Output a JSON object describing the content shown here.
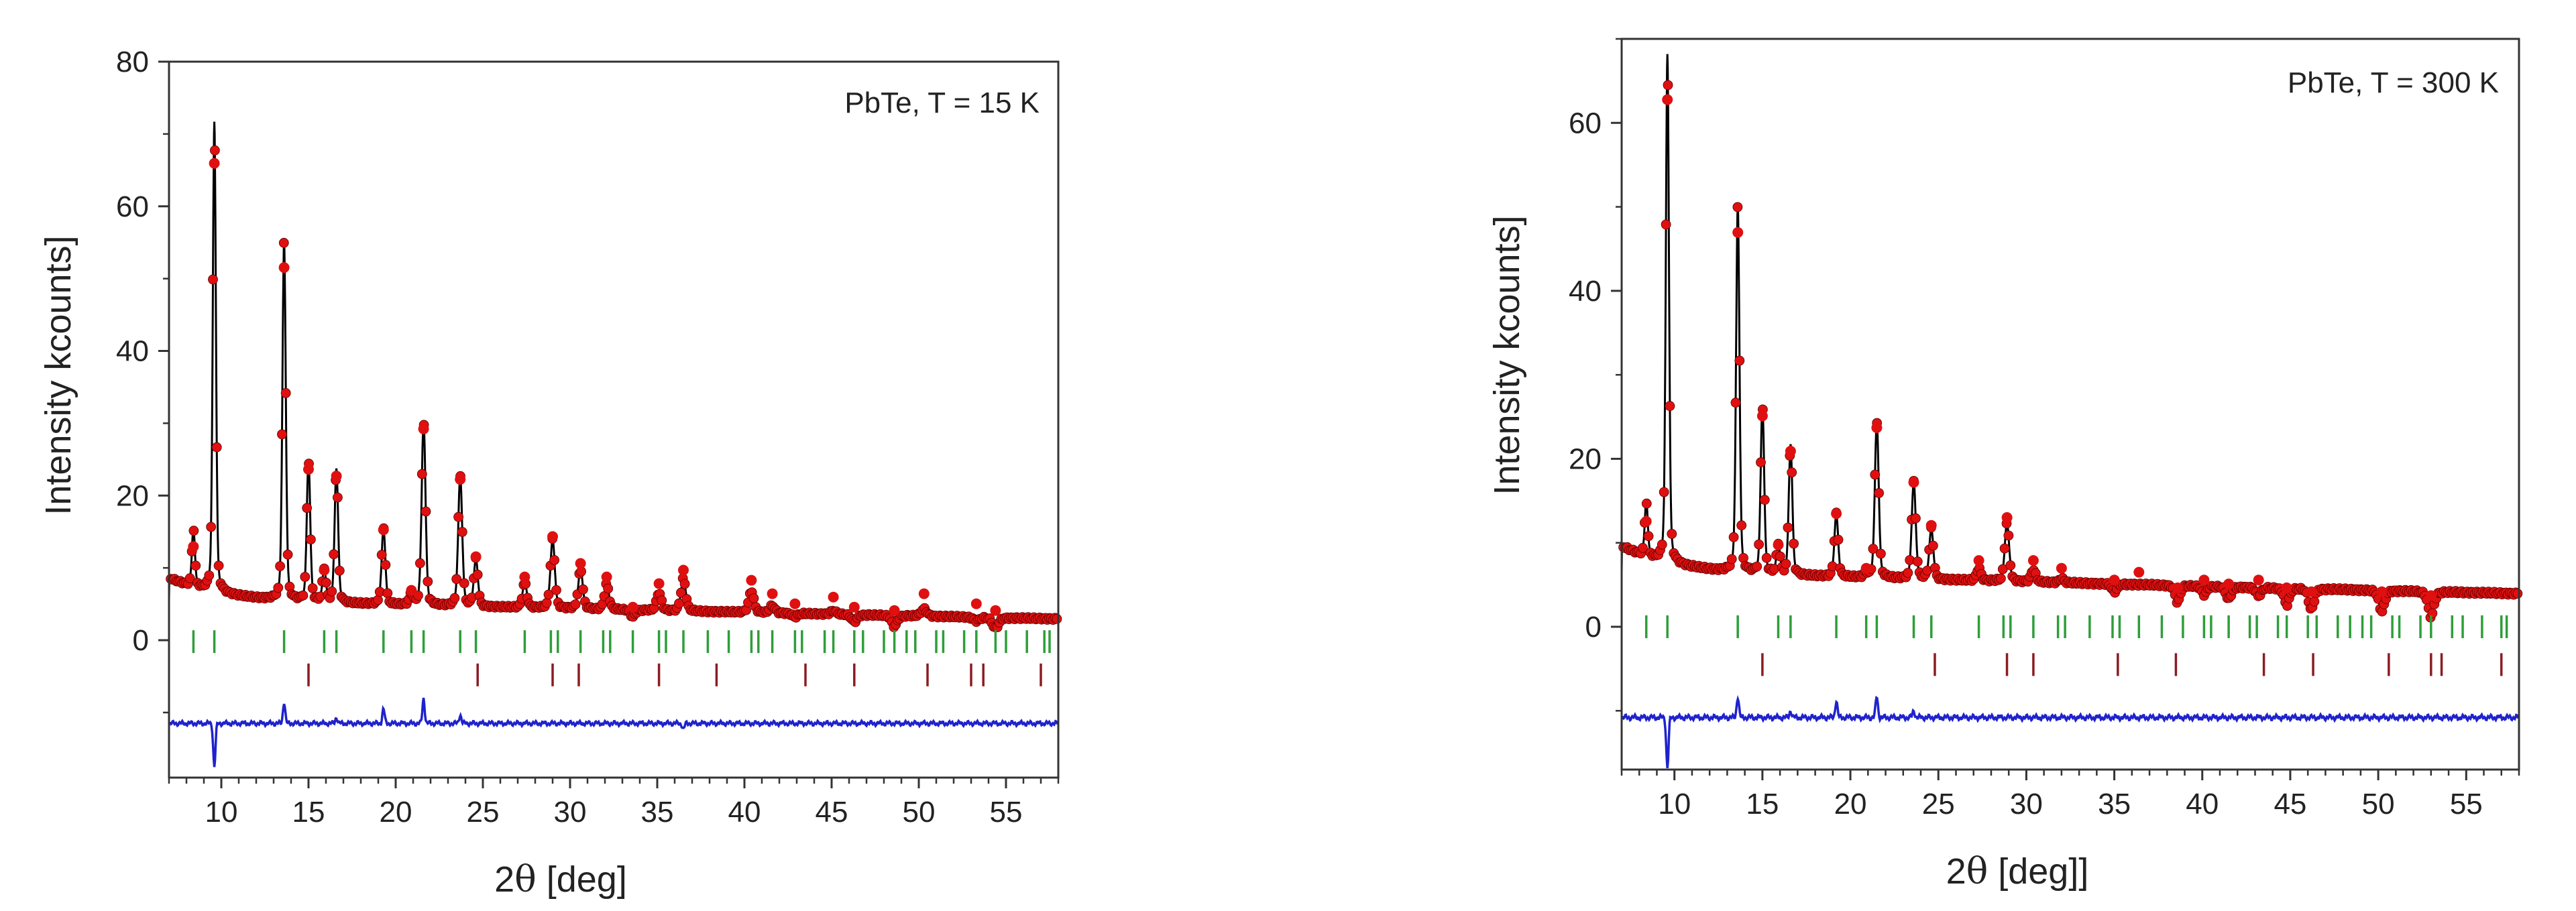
{
  "colors": {
    "observed": "#e01010",
    "calculated": "#000000",
    "difference": "#1f22cc",
    "reflections_phase1": "#2e9e3a",
    "reflections_phase2": "#8b1c22",
    "axis": "#333333"
  },
  "chart_data": [
    {
      "type": "line",
      "subtype": "rietveld-refinement",
      "annotation": "PbTe, T = 15 K",
      "xlabel_prefix": "2",
      "xlabel_theta": "θ",
      "xlabel_suffix": " [deg]",
      "ylabel": "Intensity kcounts]",
      "xlim": [
        7,
        58
      ],
      "ylim": [
        -19,
        80
      ],
      "x_ticks": [
        10,
        15,
        20,
        25,
        30,
        35,
        40,
        45,
        50,
        55
      ],
      "y_ticks": [
        0,
        20,
        40,
        60,
        80
      ],
      "background": 5.5,
      "difference_offset": -11.5,
      "peaks": [
        {
          "x": 8.4,
          "y": 13.5
        },
        {
          "x": 9.6,
          "y": 70.5
        },
        {
          "x": 13.6,
          "y": 55
        },
        {
          "x": 15.0,
          "y": 25
        },
        {
          "x": 15.9,
          "y": 10
        },
        {
          "x": 16.6,
          "y": 24
        },
        {
          "x": 19.3,
          "y": 16
        },
        {
          "x": 20.9,
          "y": 7
        },
        {
          "x": 21.6,
          "y": 31
        },
        {
          "x": 23.7,
          "y": 23.5
        },
        {
          "x": 24.6,
          "y": 12
        },
        {
          "x": 27.4,
          "y": 9
        },
        {
          "x": 29.0,
          "y": 15
        },
        {
          "x": 30.6,
          "y": 11
        },
        {
          "x": 32.1,
          "y": 9
        },
        {
          "x": 33.6,
          "y": 4.5
        },
        {
          "x": 35.1,
          "y": 8
        },
        {
          "x": 36.5,
          "y": 10
        },
        {
          "x": 40.4,
          "y": 8.5
        },
        {
          "x": 41.6,
          "y": 6.5
        },
        {
          "x": 42.9,
          "y": 5
        },
        {
          "x": 45.1,
          "y": 6
        },
        {
          "x": 46.3,
          "y": 4.5
        },
        {
          "x": 48.6,
          "y": 4
        },
        {
          "x": 50.3,
          "y": 6.5
        },
        {
          "x": 53.3,
          "y": 5
        },
        {
          "x": 54.4,
          "y": 4
        }
      ],
      "difference_spikes": [
        {
          "x": 9.6,
          "y": -6
        },
        {
          "x": 13.6,
          "y": 3
        },
        {
          "x": 16.6,
          "y": 0.8
        },
        {
          "x": 19.3,
          "y": 2
        },
        {
          "x": 21.6,
          "y": 3.5
        },
        {
          "x": 23.7,
          "y": 1.2
        },
        {
          "x": 36.5,
          "y": -0.8
        }
      ],
      "reflections_phase1": {
        "y": -0.2,
        "positions": [
          8.4,
          9.6,
          13.6,
          15.9,
          16.6,
          19.3,
          20.9,
          21.6,
          23.7,
          24.6,
          27.4,
          28.9,
          29.3,
          30.6,
          31.9,
          32.3,
          33.6,
          35.1,
          35.5,
          36.5,
          37.9,
          39.1,
          40.4,
          40.8,
          41.6,
          42.9,
          43.3,
          44.6,
          45.1,
          46.3,
          46.8,
          48.0,
          48.6,
          49.3,
          49.8,
          51.0,
          51.4,
          52.6,
          53.3,
          54.4,
          55.0,
          56.2,
          57.2,
          57.5
        ]
      },
      "reflections_phase2": {
        "y": -4.8,
        "positions": [
          15.0,
          24.7,
          29.0,
          30.5,
          35.1,
          38.4,
          43.5,
          46.3,
          50.5,
          53.0,
          53.7,
          57.0
        ]
      }
    },
    {
      "type": "line",
      "subtype": "rietveld-refinement",
      "annotation": "PbTe, T = 300 K",
      "xlabel_prefix": "2",
      "xlabel_theta": "θ",
      "xlabel_suffix": " [deg]]",
      "ylabel": "Intensity kcounts]",
      "xlim": [
        7,
        58
      ],
      "ylim": [
        -17,
        70
      ],
      "x_ticks": [
        10,
        15,
        20,
        25,
        30,
        35,
        40,
        45,
        50,
        55
      ],
      "y_ticks": [
        0,
        20,
        40,
        60
      ],
      "background": 6.5,
      "difference_offset": -10.8,
      "peaks": [
        {
          "x": 8.4,
          "y": 13
        },
        {
          "x": 9.6,
          "y": 67
        },
        {
          "x": 13.6,
          "y": 50
        },
        {
          "x": 15.0,
          "y": 26.5
        },
        {
          "x": 15.9,
          "y": 10
        },
        {
          "x": 16.6,
          "y": 22
        },
        {
          "x": 19.2,
          "y": 14
        },
        {
          "x": 20.9,
          "y": 7
        },
        {
          "x": 21.5,
          "y": 25
        },
        {
          "x": 23.6,
          "y": 18
        },
        {
          "x": 24.6,
          "y": 12.5
        },
        {
          "x": 27.3,
          "y": 8
        },
        {
          "x": 28.9,
          "y": 13.5
        },
        {
          "x": 30.4,
          "y": 8
        },
        {
          "x": 32.0,
          "y": 7
        },
        {
          "x": 35.0,
          "y": 5.5
        },
        {
          "x": 36.4,
          "y": 6.5
        },
        {
          "x": 38.6,
          "y": 4.5
        },
        {
          "x": 40.1,
          "y": 5.5
        },
        {
          "x": 41.5,
          "y": 5
        },
        {
          "x": 43.2,
          "y": 5.5
        },
        {
          "x": 44.8,
          "y": 4.5
        },
        {
          "x": 46.2,
          "y": 4
        },
        {
          "x": 50.2,
          "y": 4
        },
        {
          "x": 53.0,
          "y": 3.5
        }
      ],
      "difference_spikes": [
        {
          "x": 9.6,
          "y": -6
        },
        {
          "x": 13.6,
          "y": 2.5
        },
        {
          "x": 16.6,
          "y": 0.8
        },
        {
          "x": 19.2,
          "y": 2
        },
        {
          "x": 21.5,
          "y": 2.5
        },
        {
          "x": 23.6,
          "y": 0.8
        }
      ],
      "reflections_phase1": {
        "y": 0,
        "positions": [
          8.4,
          9.6,
          13.6,
          15.9,
          16.6,
          19.2,
          20.9,
          21.5,
          23.6,
          24.6,
          27.3,
          28.7,
          29.1,
          30.4,
          31.8,
          32.2,
          33.6,
          34.9,
          35.3,
          36.4,
          37.7,
          38.9,
          40.1,
          40.5,
          41.5,
          42.7,
          43.1,
          44.3,
          44.8,
          46.0,
          46.5,
          47.7,
          48.4,
          49.1,
          49.6,
          50.8,
          51.2,
          52.4,
          53.0,
          54.2,
          54.8,
          55.9,
          57.0,
          57.3
        ]
      },
      "reflections_phase2": {
        "y": -4.5,
        "positions": [
          15.0,
          24.8,
          28.9,
          30.4,
          35.2,
          38.5,
          43.5,
          46.3,
          50.6,
          53.0,
          53.6,
          57.0
        ]
      }
    }
  ]
}
